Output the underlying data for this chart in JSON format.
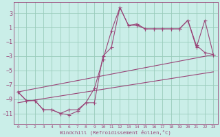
{
  "xlabel": "Windchill (Refroidissement éolien,°C)",
  "bg_color": "#caeee8",
  "line_color": "#994477",
  "grid_color": "#99ccbb",
  "xlim": [
    -0.5,
    23.5
  ],
  "ylim": [
    -12.5,
    4.5
  ],
  "yticks": [
    -11,
    -9,
    -7,
    -5,
    -3,
    -1,
    1,
    3
  ],
  "xticks": [
    0,
    1,
    2,
    3,
    4,
    5,
    6,
    7,
    8,
    9,
    10,
    11,
    12,
    13,
    14,
    15,
    16,
    17,
    18,
    19,
    20,
    21,
    22,
    23
  ],
  "line1": [
    -8.0,
    -9.2,
    -9.2,
    -10.5,
    -10.5,
    -11.0,
    -11.2,
    -10.7,
    -9.5,
    -7.5,
    -3.5,
    0.5,
    3.8,
    1.3,
    1.5,
    0.8,
    0.8,
    0.8,
    0.8,
    0.8,
    2.0,
    -1.8,
    2.0,
    -2.8
  ],
  "line2": [
    -8.0,
    -9.2,
    -9.2,
    -10.5,
    -10.5,
    -11.0,
    -10.5,
    -10.5,
    -9.5,
    -9.5,
    -3.0,
    -1.8,
    3.8,
    1.3,
    1.3,
    0.8,
    0.8,
    0.8,
    0.8,
    0.8,
    2.0,
    -1.5,
    -2.5,
    -2.8
  ],
  "trend1_x": [
    0,
    23
  ],
  "trend1_y": [
    -8.0,
    -2.8
  ],
  "trend2_x": [
    0,
    23
  ],
  "trend2_y": [
    -9.5,
    -5.2
  ]
}
